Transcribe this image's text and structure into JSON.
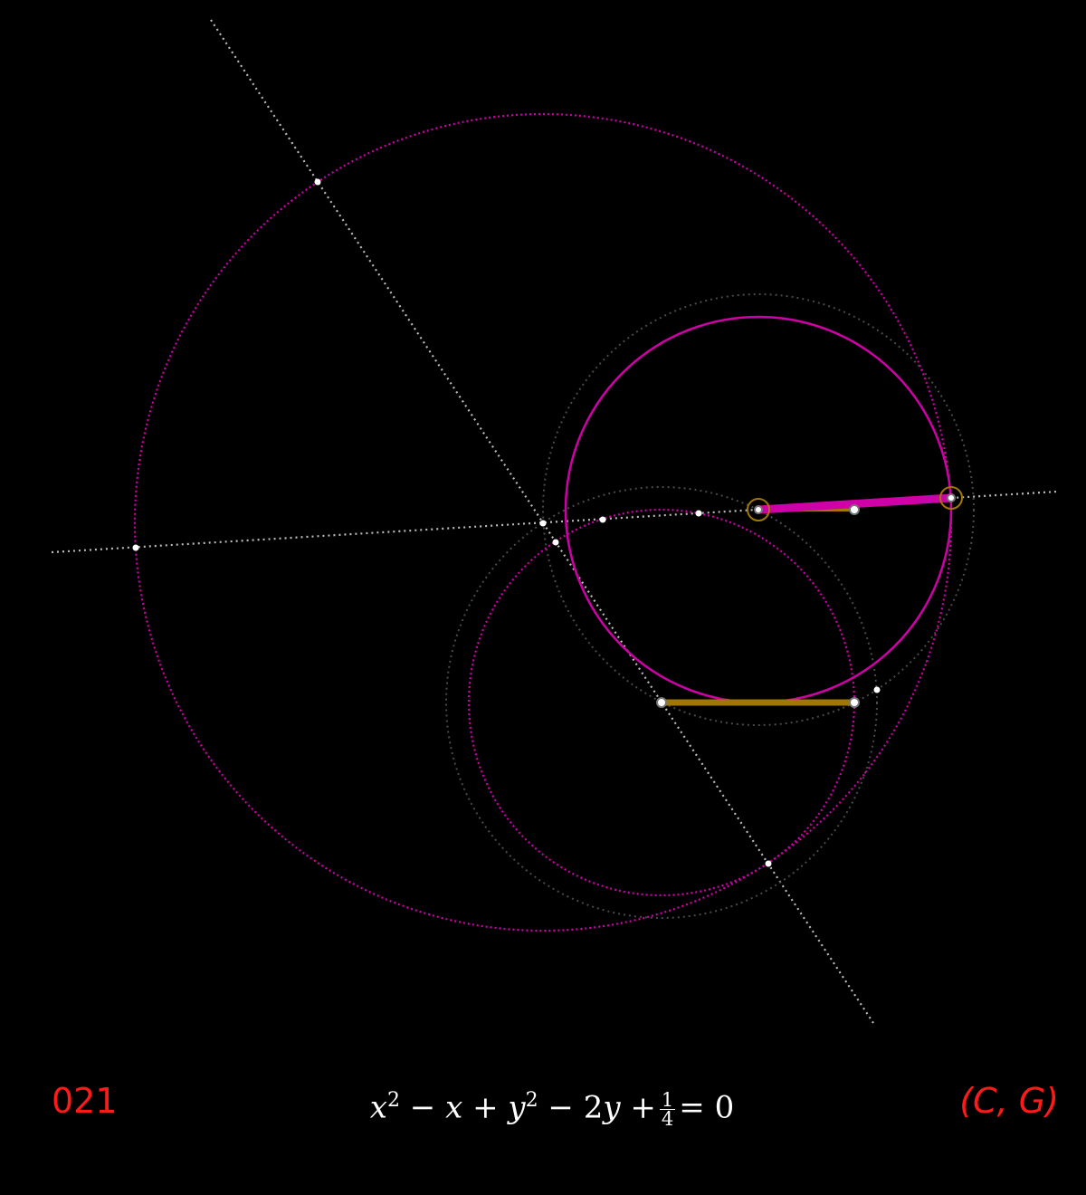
{
  "index_label": "021",
  "pair_label": "(C, G)",
  "equation": {
    "x": "x",
    "y": "y",
    "exp": "2",
    "minus": "−",
    "plus": "+",
    "equals": "=",
    "two": "2",
    "frac_num": "1",
    "frac_den": "4",
    "zero": "0"
  },
  "colors": {
    "background": "#000000",
    "label_red": "#ff1a1a",
    "magenta": "#d000a8",
    "gold": "#a07800",
    "grey_line": "#bbbbbb",
    "grey_circle": "#4a4a4a",
    "point": "#ffffff"
  }
}
